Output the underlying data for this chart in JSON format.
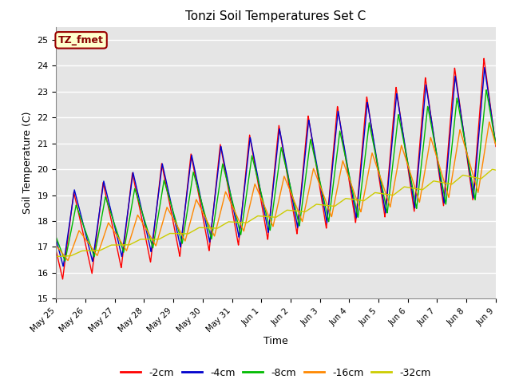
{
  "title": "Tonzi Soil Temperatures Set C",
  "ylabel": "Soil Temperature (C)",
  "xlabel": "Time",
  "ylim": [
    15.0,
    25.5
  ],
  "yticks": [
    15.0,
    16.0,
    17.0,
    18.0,
    19.0,
    20.0,
    21.0,
    22.0,
    23.0,
    24.0,
    25.0
  ],
  "label_text": "TZ_fmet",
  "label_bg": "#FFFFCC",
  "label_border": "#990000",
  "bg_color": "#E5E5E5",
  "fig_bg": "#FFFFFF",
  "legend_labels": [
    "-2cm",
    "-4cm",
    "-8cm",
    "-16cm",
    "-32cm"
  ],
  "line_colors": [
    "#FF0000",
    "#0000CC",
    "#00BB00",
    "#FF8800",
    "#CCCC00"
  ],
  "n_days": 16
}
